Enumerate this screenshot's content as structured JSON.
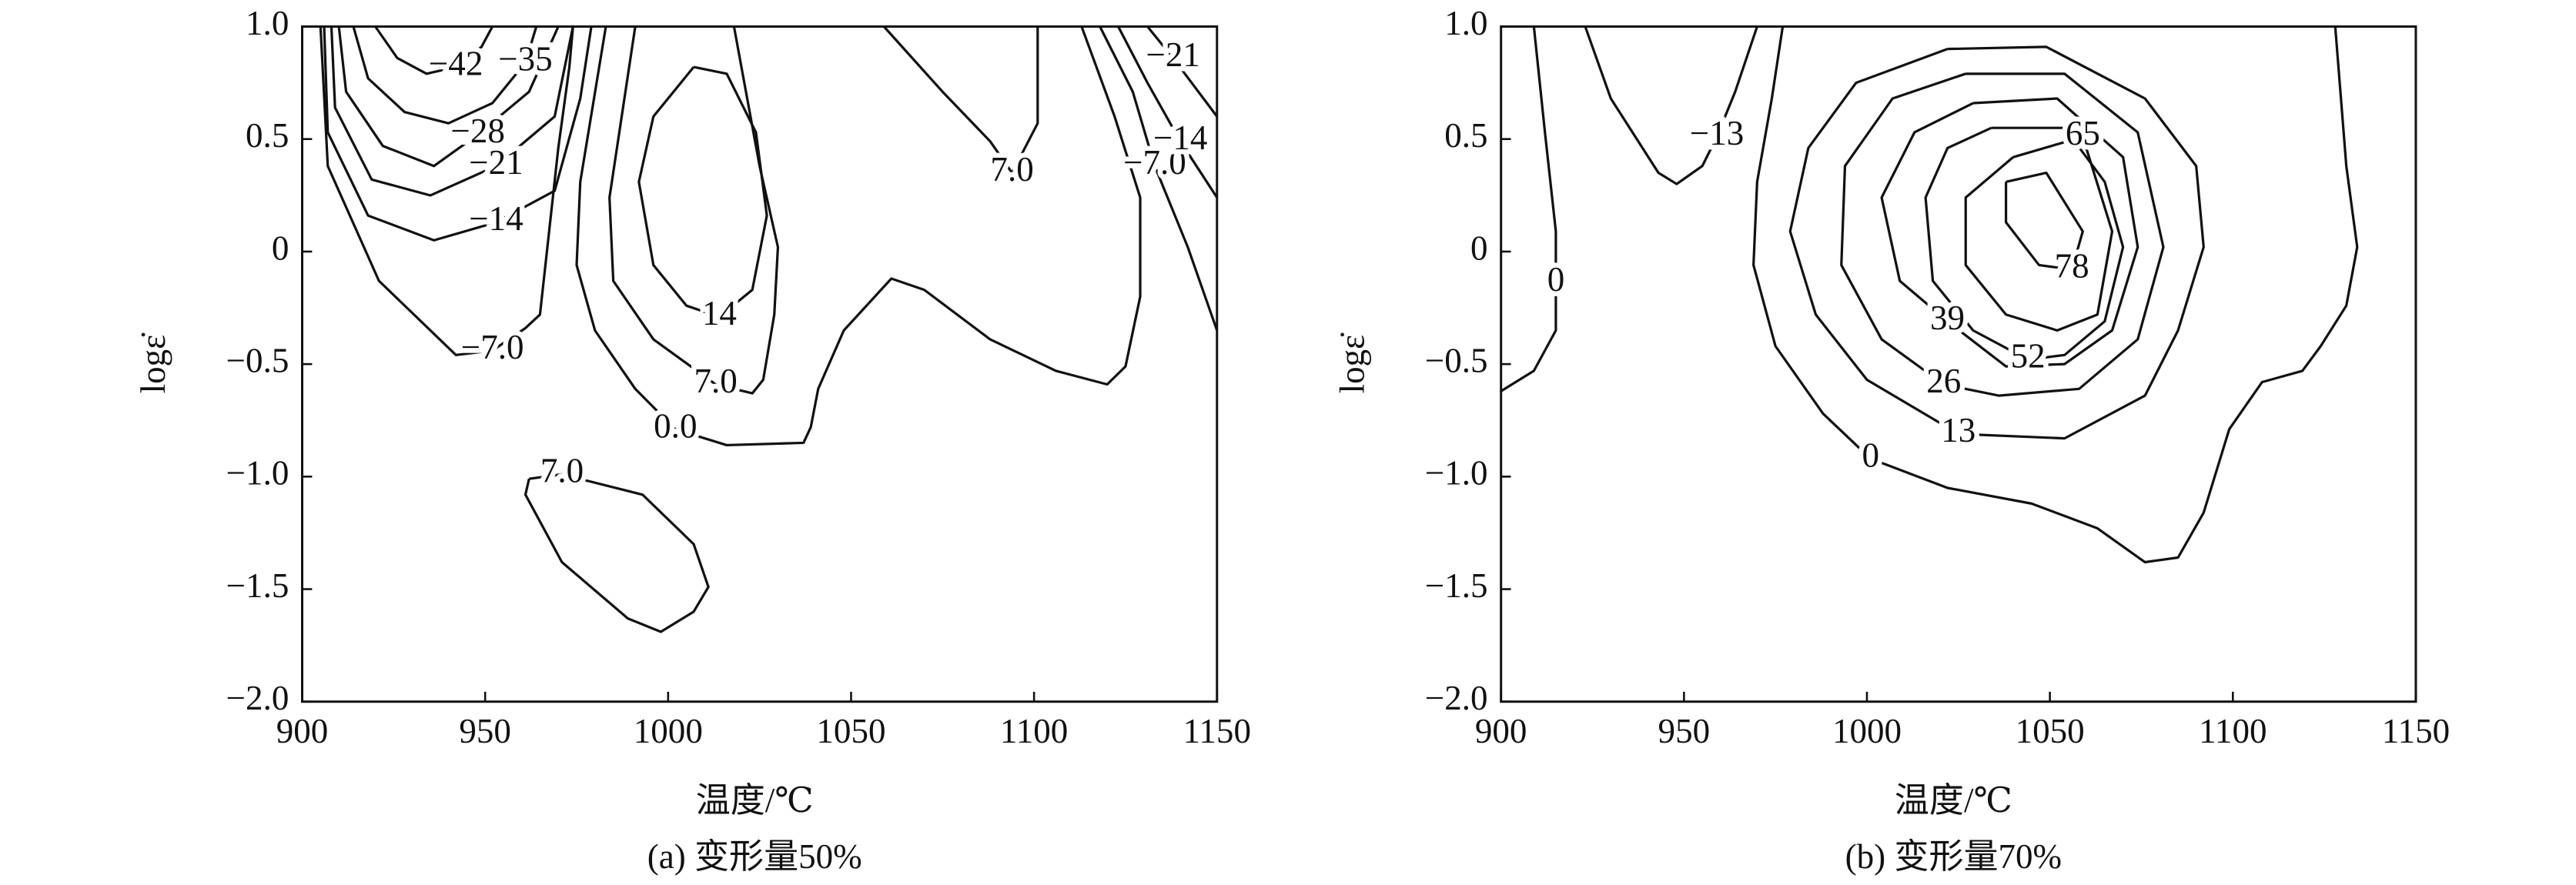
{
  "chart_data": [
    {
      "type": "contour",
      "title": "(a) 变形量50%",
      "xlabel": "温度/℃",
      "ylabel": "logε̇",
      "xlim": [
        900,
        1150
      ],
      "ylim": [
        -2,
        1
      ],
      "xticks": [
        900,
        950,
        1000,
        1050,
        1100,
        1150
      ],
      "yticks": [
        {
          "value": 1,
          "label": "1.0"
        },
        {
          "value": 0.5,
          "label": "0.5"
        },
        0,
        {
          "value": -0.5,
          "label": "−0.5"
        },
        {
          "value": -1,
          "label": "−1.0"
        },
        {
          "value": -1.5,
          "label": "−1.5"
        },
        {
          "value": -2,
          "label": "−2.0"
        }
      ],
      "contours": [
        {
          "label": "−42",
          "x": [
            920,
            926,
            934,
            942,
            949,
            952
          ],
          "y": [
            1,
            0.86,
            0.79,
            0.82,
            0.91,
            1
          ]
        },
        {
          "label": "−35",
          "x": [
            914,
            918,
            928,
            940,
            952,
            961,
            964
          ],
          "y": [
            1,
            0.77,
            0.62,
            0.57,
            0.66,
            0.84,
            1
          ]
        },
        {
          "label": "−28",
          "x": [
            910,
            912,
            922,
            936,
            948,
            962,
            970
          ],
          "y": [
            1,
            0.71,
            0.47,
            0.38,
            0.52,
            0.71,
            1
          ]
        },
        {
          "label": "−21",
          "x": [
            908,
            909,
            919,
            935,
            953,
            969,
            974
          ],
          "y": [
            1,
            0.64,
            0.32,
            0.25,
            0.38,
            0.6,
            1
          ]
        },
        {
          "label": "−14",
          "x": [
            906,
            907,
            918,
            936,
            953,
            969,
            976,
            979
          ],
          "y": [
            1,
            0.53,
            0.16,
            0.05,
            0.13,
            0.27,
            0.68,
            1
          ]
        },
        {
          "label": "−7.0",
          "x": [
            905,
            907,
            921,
            942,
            952,
            961,
            965,
            967,
            970,
            973,
            974
          ],
          "y": [
            1,
            0.38,
            -0.13,
            -0.46,
            -0.44,
            -0.34,
            -0.28,
            0.02,
            0.46,
            0.82,
            1
          ]
        },
        {
          "label": "14",
          "x": [
            1007,
            996,
            992,
            996,
            1005,
            1014,
            1023,
            1027,
            1024,
            1016,
            1007
          ],
          "y": [
            0.82,
            0.6,
            0.31,
            -0.06,
            -0.24,
            -0.29,
            -0.17,
            0.16,
            0.53,
            0.79,
            0.82
          ]
        },
        {
          "label": "7.0",
          "x": [
            991,
            984,
            985,
            996,
            1013,
            1023,
            1026,
            1029,
            1030,
            1025,
            1018
          ],
          "y": [
            1,
            0.24,
            -0.13,
            -0.39,
            -0.59,
            -0.63,
            -0.57,
            -0.28,
            0.02,
            0.38,
            1
          ]
        },
        {
          "label": "0.0",
          "x": [
            983,
            976,
            975,
            980,
            991,
            1002,
            1016,
            1037,
            1039,
            1041,
            1048,
            1061,
            1070,
            1088,
            1106,
            1120,
            1125,
            1129,
            1129,
            1122,
            1113
          ],
          "y": [
            1,
            0.31,
            -0.06,
            -0.35,
            -0.61,
            -0.79,
            -0.86,
            -0.85,
            -0.78,
            -0.61,
            -0.35,
            -0.12,
            -0.17,
            -0.39,
            -0.53,
            -0.59,
            -0.51,
            -0.2,
            0.24,
            0.6,
            1
          ]
        },
        {
          "label": "7.0",
          "x": [
            1059,
            1075,
            1088,
            1094,
            1101,
            1101
          ],
          "y": [
            1,
            0.71,
            0.49,
            0.35,
            0.57,
            1
          ]
        },
        {
          "label": "−7.0",
          "x": [
            1118,
            1127,
            1133,
            1142,
            1150
          ],
          "y": [
            1,
            0.71,
            0.38,
            0.02,
            -0.35
          ]
        },
        {
          "label": "−14",
          "x": [
            1123,
            1131,
            1140,
            1150
          ],
          "y": [
            1,
            0.75,
            0.49,
            0.24
          ]
        },
        {
          "label": "−21",
          "x": [
            1131,
            1138,
            1150
          ],
          "y": [
            1,
            0.86,
            0.6
          ]
        },
        {
          "label": "7.0",
          "x": [
            962,
            971,
            993,
            1007,
            1011,
            1007,
            998,
            989,
            971,
            961,
            962
          ],
          "y": [
            -1.01,
            -0.99,
            -1.08,
            -1.3,
            -1.49,
            -1.6,
            -1.69,
            -1.63,
            -1.38,
            -1.08,
            -1.01
          ]
        }
      ]
    },
    {
      "type": "contour",
      "title": "(b) 变形量70%",
      "xlabel": "温度/℃",
      "ylabel": "logε̇",
      "xlim": [
        900,
        1150
      ],
      "ylim": [
        -2,
        1
      ],
      "xticks": [
        900,
        950,
        1000,
        1050,
        1100,
        1150
      ],
      "yticks": [
        {
          "value": 1,
          "label": "1.0"
        },
        {
          "value": 0.5,
          "label": "0.5"
        },
        0,
        {
          "value": -0.5,
          "label": "−0.5"
        },
        {
          "value": -1,
          "label": "−1.0"
        },
        {
          "value": -1.5,
          "label": "−1.5"
        },
        {
          "value": -2,
          "label": "−2.0"
        }
      ],
      "contours": [
        {
          "label": "0",
          "x": [
            909,
            912,
            915,
            915,
            915,
            909,
            900
          ],
          "y": [
            1,
            0.53,
            0.09,
            -0.14,
            -0.35,
            -0.53,
            -0.62
          ]
        },
        {
          "label": "−13",
          "x": [
            923,
            930,
            943,
            948,
            955,
            959,
            964,
            970
          ],
          "y": [
            1,
            0.68,
            0.35,
            0.3,
            0.38,
            0.51,
            0.71,
            1
          ]
        },
        {
          "label": "0",
          "x": [
            977,
            974,
            970,
            969,
            975,
            988,
            1001,
            1022,
            1045,
            1063,
            1076,
            1085,
            1092,
            1099,
            1108,
            1119,
            1124,
            1131,
            1134,
            1131,
            1128
          ],
          "y": [
            1,
            0.68,
            0.31,
            -0.06,
            -0.42,
            -0.72,
            -0.92,
            -1.05,
            -1.12,
            -1.23,
            -1.38,
            -1.36,
            -1.16,
            -0.79,
            -0.58,
            -0.53,
            -0.42,
            -0.24,
            0.02,
            0.38,
            1
          ]
        },
        {
          "label": "13",
          "x": [
            1022,
            1049,
            1076,
            1090,
            1092,
            1085,
            1076,
            1054,
            1025,
            1000,
            986,
            979,
            984,
            997,
            1022
          ],
          "y": [
            0.9,
            0.91,
            0.68,
            0.38,
            0.02,
            -0.35,
            -0.64,
            -0.83,
            -0.81,
            -0.57,
            -0.28,
            0.09,
            0.46,
            0.75,
            0.9
          ]
        },
        {
          "label": "26",
          "x": [
            1027,
            1054,
            1074,
            1081,
            1074,
            1058,
            1036,
            1021,
            1004,
            993,
            994,
            1007,
            1027
          ],
          "y": [
            0.79,
            0.79,
            0.53,
            0.02,
            -0.39,
            -0.61,
            -0.64,
            -0.59,
            -0.39,
            -0.06,
            0.38,
            0.68,
            0.79
          ]
        },
        {
          "label": "39",
          "x": [
            1029,
            1052,
            1070,
            1074,
            1067,
            1054,
            1038,
            1022,
            1009,
            1004,
            1013,
            1029
          ],
          "y": [
            0.66,
            0.68,
            0.42,
            0.02,
            -0.35,
            -0.5,
            -0.51,
            -0.31,
            -0.13,
            0.24,
            0.53,
            0.66
          ]
        },
        {
          "label": "52",
          "x": [
            1034,
            1054,
            1065,
            1070,
            1065,
            1054,
            1044,
            1029,
            1018,
            1016,
            1022,
            1034
          ],
          "y": [
            0.55,
            0.55,
            0.31,
            0.02,
            -0.31,
            -0.46,
            -0.48,
            -0.35,
            -0.13,
            0.24,
            0.46,
            0.55
          ]
        },
        {
          "label": "65",
          "x": [
            1040,
            1059,
            1067,
            1063,
            1052,
            1038,
            1027,
            1027,
            1040
          ],
          "y": [
            0.42,
            0.51,
            0.09,
            -0.28,
            -0.35,
            -0.28,
            -0.06,
            0.24,
            0.42
          ]
        },
        {
          "label": "78",
          "x": [
            1038,
            1049,
            1059,
            1056,
            1047,
            1038,
            1038
          ],
          "y": [
            0.31,
            0.35,
            0.09,
            -0.08,
            -0.06,
            0.13,
            0.31
          ]
        }
      ]
    }
  ]
}
